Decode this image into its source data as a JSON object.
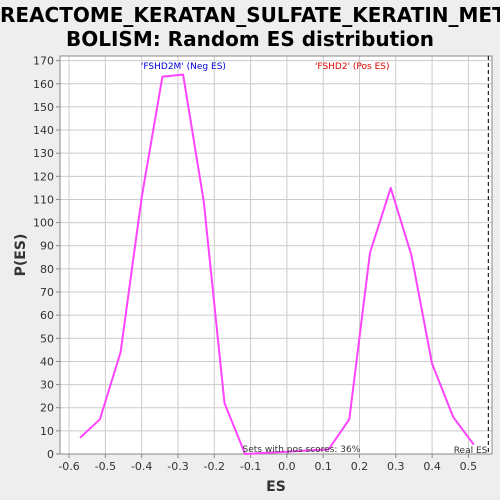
{
  "chart_data": {
    "type": "line",
    "title_line1": "REACTOME_KERATAN_SULFATE_KERATIN_META",
    "title_line2": "BOLISM: Random ES distribution",
    "xlabel": "ES",
    "ylabel": "P(ES)",
    "xlim": [
      -0.625,
      0.565
    ],
    "ylim": [
      0,
      172
    ],
    "x_ticks": [
      -0.6,
      -0.5,
      -0.4,
      -0.3,
      -0.2,
      -0.1,
      0.0,
      0.1,
      0.2,
      0.3,
      0.4,
      0.5
    ],
    "x_tick_labels": [
      "-0.6",
      "-0.5",
      "-0.4",
      "-0.3",
      "-0.2",
      "-0.1",
      "0.0",
      "0.1",
      "0.2",
      "0.3",
      "0.4",
      "0.5"
    ],
    "y_ticks": [
      0,
      10,
      20,
      30,
      40,
      50,
      60,
      70,
      80,
      90,
      100,
      110,
      120,
      130,
      140,
      150,
      160,
      170
    ],
    "y_tick_labels": [
      "0",
      "10",
      "20",
      "30",
      "40",
      "50",
      "60",
      "70",
      "80",
      "90",
      "100",
      "110",
      "120",
      "130",
      "140",
      "150",
      "160",
      "170"
    ],
    "grid": true,
    "line_color": "#ff44ff",
    "series": [
      {
        "x": [
          -0.57,
          -0.515,
          -0.458,
          -0.4,
          -0.343,
          -0.286,
          -0.229,
          -0.172,
          -0.115,
          0.115,
          0.172,
          0.229,
          0.286,
          0.343,
          0.4,
          0.458,
          0.515
        ],
        "y": [
          7,
          15,
          44,
          111,
          163,
          164,
          109,
          22,
          0,
          2,
          15,
          87,
          115,
          86,
          39,
          16,
          4
        ]
      }
    ],
    "annotations": {
      "neg_label": "'FSHD2M' (Neg ES)",
      "neg_color": "#0000dd",
      "pos_label": "'FSHD2' (Pos ES)",
      "pos_color": "#dd0000",
      "pos_scores_text": "Sets with pos scores: 36%",
      "real_es_text": "Real ES",
      "real_es_value": 0.555
    }
  }
}
